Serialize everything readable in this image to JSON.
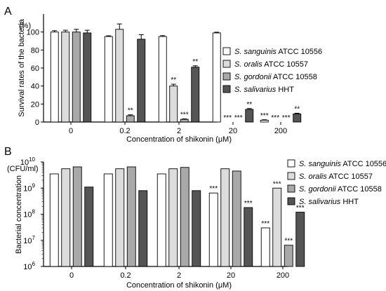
{
  "chart_data": [
    {
      "panel_label": "A",
      "type": "bar",
      "ylabel": "Survival rates of the bacteria",
      "yunit": "(%)",
      "xlabel": "Concentration of shikonin (μM)",
      "categories": [
        "0",
        "0.2",
        "2",
        "20",
        "200"
      ],
      "ylim": [
        0,
        120
      ],
      "yticks": [
        "0",
        "20",
        "40",
        "60",
        "80",
        "100"
      ],
      "yscale": "linear",
      "legend_placement": "right",
      "series": [
        {
          "name": "S. sanguinis",
          "suffix": " ATCC 10556",
          "color": "#ffffff",
          "values": [
            100,
            95,
            95,
            99,
            2
          ],
          "errors": [
            1.5,
            0.8,
            1,
            0.8,
            0.5
          ],
          "sig": [
            "",
            "",
            "",
            "",
            "***"
          ]
        },
        {
          "name": "S. oralis",
          "suffix": " ATCC 10557",
          "color": "#dcdcdc",
          "values": [
            100,
            103,
            40,
            0,
            0
          ],
          "errors": [
            2,
            6,
            2,
            0,
            0
          ],
          "sig": [
            "",
            "",
            "**",
            "***",
            "***"
          ]
        },
        {
          "name": "S. gordonii",
          "suffix": " ATCC 10558",
          "color": "#a9a9a9",
          "values": [
            100,
            7,
            3,
            0,
            0
          ],
          "errors": [
            3,
            1,
            0.5,
            0,
            0
          ],
          "sig": [
            "",
            "**",
            "***",
            "***",
            "***"
          ]
        },
        {
          "name": "S. salivarius",
          "suffix": " HHT",
          "color": "#555555",
          "values": [
            99,
            92,
            61,
            14,
            9
          ],
          "errors": [
            3,
            5,
            1.5,
            1,
            0.8
          ],
          "sig": [
            "",
            "",
            "**",
            "**",
            "**"
          ]
        }
      ]
    },
    {
      "panel_label": "B",
      "type": "bar",
      "ylabel": "Bacterial concentration",
      "yunit": "(CFU/ml)",
      "xlabel": "Concentration of shikonin (μM)",
      "categories": [
        "0",
        "0.2",
        "2",
        "20",
        "200"
      ],
      "ylim": [
        1000000,
        10000000000
      ],
      "yticks": [
        "6",
        "7",
        "8",
        "9",
        "10"
      ],
      "ytick_base": "10",
      "yscale": "log",
      "legend_placement": "right",
      "series": [
        {
          "name": "S. sanguinis",
          "suffix": " ATCC 10556",
          "color": "#ffffff",
          "values": [
            3500000000,
            3500000000,
            3500000000,
            650000000,
            30000000
          ],
          "sig": [
            "",
            "",
            "",
            "***",
            "***"
          ]
        },
        {
          "name": "S. oralis",
          "suffix": " ATCC 10557",
          "color": "#dcdcdc",
          "values": [
            5500000000,
            5500000000,
            5500000000,
            5500000000,
            1000000000
          ],
          "sig": [
            "",
            "",
            "",
            "",
            "***"
          ]
        },
        {
          "name": "S. gordonii",
          "suffix": " ATCC 10558",
          "color": "#a9a9a9",
          "values": [
            6500000000,
            6500000000,
            6200000000,
            4500000000,
            6500000
          ],
          "sig": [
            "",
            "",
            "",
            "",
            "***"
          ]
        },
        {
          "name": "S. salivarius",
          "suffix": " HHT",
          "color": "#555555",
          "values": [
            1100000000,
            800000000,
            800000000,
            180000000,
            120000000
          ],
          "sig": [
            "",
            "",
            "",
            "***",
            "***"
          ]
        }
      ]
    }
  ]
}
